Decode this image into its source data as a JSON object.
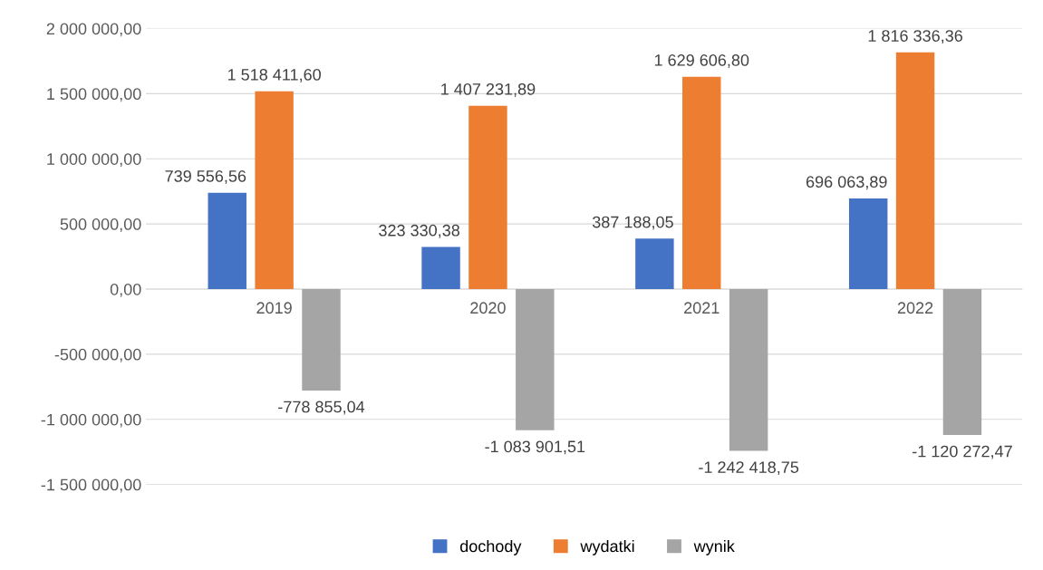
{
  "chart_data": {
    "type": "bar",
    "categories": [
      "2019",
      "2020",
      "2021",
      "2022"
    ],
    "series": [
      {
        "name": "dochody",
        "color": "#4472c4",
        "values": [
          739556.56,
          323330.38,
          387188.05,
          696063.89
        ],
        "value_labels": [
          "739 556,56",
          "323 330,38",
          "387 188,05",
          "696 063,89"
        ]
      },
      {
        "name": "wydatki",
        "color": "#ed7d31",
        "values": [
          1518411.6,
          1407231.89,
          1629606.8,
          1816336.36
        ],
        "value_labels": [
          "1 518 411,60",
          "1 407 231,89",
          "1 629 606,80",
          "1 816 336,36"
        ]
      },
      {
        "name": "wynik",
        "color": "#a5a5a5",
        "values": [
          -778855.04,
          -1083901.51,
          -1242418.75,
          -1120272.47
        ],
        "value_labels": [
          "-778 855,04",
          "-1 083 901,51",
          "-1 242 418,75",
          "-1 120 272,47"
        ]
      }
    ],
    "ylim": [
      -1500000,
      2000000
    ],
    "yticks": [
      {
        "value": -1500000,
        "label": "-1 500 000,00"
      },
      {
        "value": -1000000,
        "label": "-1 000 000,00"
      },
      {
        "value": -500000,
        "label": "-500 000,00"
      },
      {
        "value": 0,
        "label": "0,00"
      },
      {
        "value": 500000,
        "label": "500 000,00"
      },
      {
        "value": 1000000,
        "label": "1 000 000,00"
      },
      {
        "value": 1500000,
        "label": "1 500 000,00"
      },
      {
        "value": 2000000,
        "label": "2 000 000,00"
      }
    ],
    "grid": "y",
    "legend": "bottom"
  }
}
